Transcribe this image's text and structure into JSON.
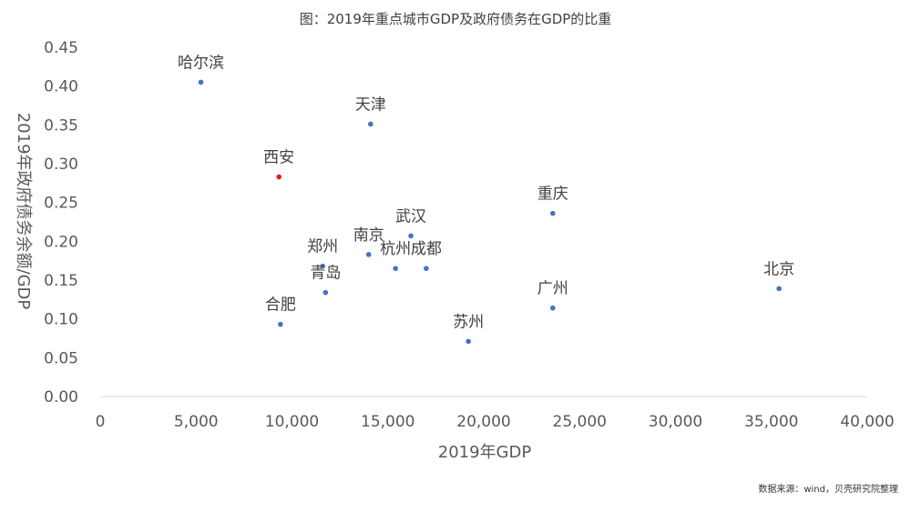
{
  "chart_data": {
    "type": "scatter",
    "title": "图：2019年重点城市GDP及政府债务在GDP的比重",
    "xlabel": "2019年GDP",
    "ylabel": "2019年政府债务余额/GDP",
    "xlim": [
      0,
      40000
    ],
    "ylim": [
      0,
      0.45
    ],
    "x_ticks": [
      "0",
      "5,000",
      "10,000",
      "15,000",
      "20,000",
      "25,000",
      "30,000",
      "35,000",
      "40,000"
    ],
    "y_ticks": [
      "0.00",
      "0.05",
      "0.10",
      "0.15",
      "0.20",
      "0.25",
      "0.30",
      "0.35",
      "0.40",
      "0.45"
    ],
    "grid": false,
    "default_color": "#4472c4",
    "highlight_color": "#e0191b",
    "points": [
      {
        "label": "哈尔滨",
        "x": 5250,
        "y": 0.405
      },
      {
        "label": "天津",
        "x": 14100,
        "y": 0.351
      },
      {
        "label": "西安",
        "x": 9320,
        "y": 0.283,
        "highlight": true
      },
      {
        "label": "重庆",
        "x": 23600,
        "y": 0.236
      },
      {
        "label": "武汉",
        "x": 16200,
        "y": 0.207
      },
      {
        "label": "南京",
        "x": 14000,
        "y": 0.183
      },
      {
        "label": "郑州",
        "x": 11600,
        "y": 0.168
      },
      {
        "label": "杭州",
        "x": 15400,
        "y": 0.165
      },
      {
        "label": "成都",
        "x": 17000,
        "y": 0.165
      },
      {
        "label": "青岛",
        "x": 11750,
        "y": 0.134
      },
      {
        "label": "北京",
        "x": 35400,
        "y": 0.139
      },
      {
        "label": "广州",
        "x": 23600,
        "y": 0.114
      },
      {
        "label": "合肥",
        "x": 9400,
        "y": 0.093
      },
      {
        "label": "苏州",
        "x": 19200,
        "y": 0.071
      }
    ]
  },
  "source": "数据来源：wind，贝壳研究院整理"
}
